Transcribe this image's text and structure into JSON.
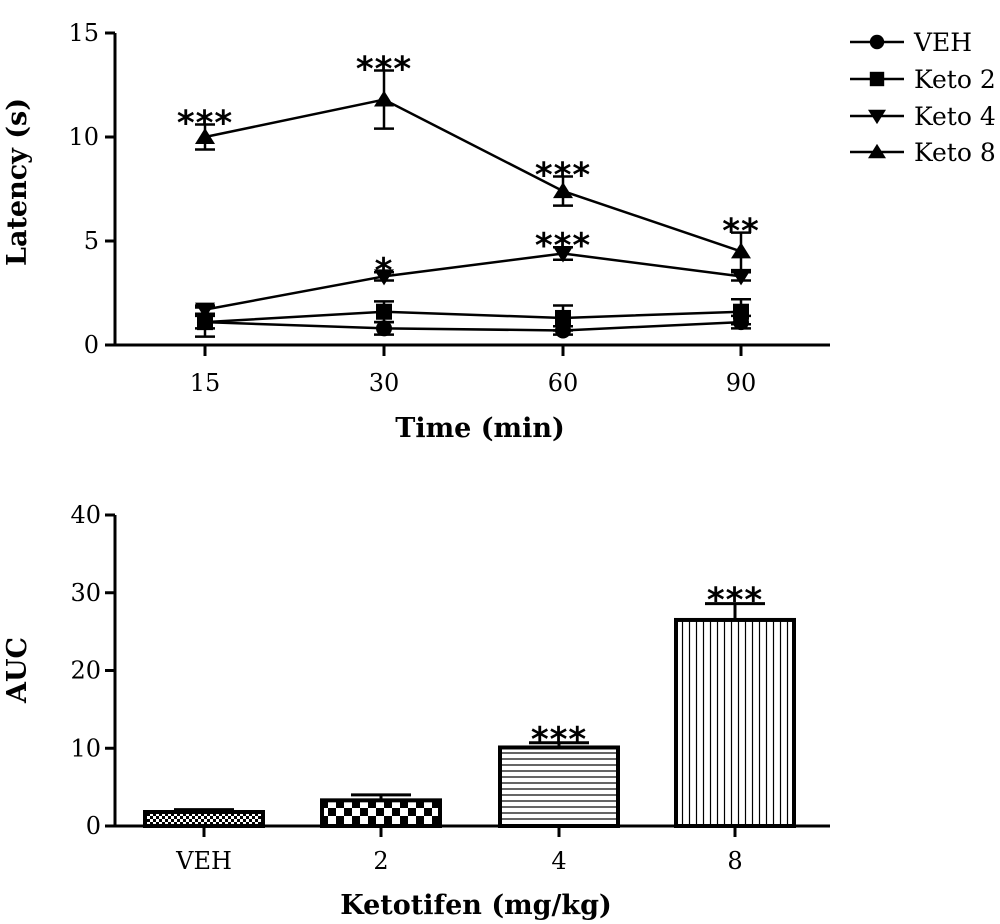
{
  "chart_data": [
    {
      "type": "line",
      "xlabel": "Time (min)",
      "ylabel": "Latency (s)",
      "categories": [
        "15",
        "30",
        "60",
        "90"
      ],
      "ylim": [
        0,
        15
      ],
      "yticks": [
        "0",
        "5",
        "10",
        "15"
      ],
      "legend_position": "right",
      "series": [
        {
          "name": "VEH",
          "marker": "circle",
          "values": [
            1.1,
            0.8,
            0.7,
            1.1
          ],
          "err": [
            0.3,
            0.3,
            0.2,
            0.3
          ],
          "sig": [
            "",
            "",
            "",
            ""
          ]
        },
        {
          "name": "Keto 2",
          "marker": "square",
          "values": [
            1.1,
            1.6,
            1.3,
            1.6
          ],
          "err": [
            0.7,
            0.5,
            0.6,
            0.6
          ],
          "sig": [
            "",
            "",
            "",
            ""
          ]
        },
        {
          "name": "Keto 4",
          "marker": "triangle-down",
          "values": [
            1.7,
            3.3,
            4.4,
            3.3
          ],
          "err": [
            0.2,
            0.2,
            0.3,
            0.2
          ],
          "sig": [
            "",
            "*",
            "***",
            ""
          ]
        },
        {
          "name": "Keto 8",
          "marker": "triangle-up",
          "values": [
            10.0,
            11.8,
            7.4,
            4.5
          ],
          "err": [
            0.6,
            1.4,
            0.7,
            0.9
          ],
          "sig": [
            "***",
            "***",
            "***",
            "**"
          ]
        }
      ]
    },
    {
      "type": "bar",
      "xlabel": "Ketotifen (mg/kg)",
      "ylabel": "AUC",
      "categories": [
        "VEH",
        "2",
        "4",
        "8"
      ],
      "ylim": [
        0,
        40
      ],
      "yticks": [
        "0",
        "10",
        "20",
        "30",
        "40"
      ],
      "values": [
        1.8,
        3.3,
        10.1,
        26.5
      ],
      "err": [
        0.3,
        0.7,
        0.6,
        2.1
      ],
      "patterns": [
        "fine-checker",
        "checker",
        "horizontal-lines",
        "vertical-lines"
      ],
      "sig": [
        "",
        "",
        "***",
        "***"
      ]
    }
  ]
}
